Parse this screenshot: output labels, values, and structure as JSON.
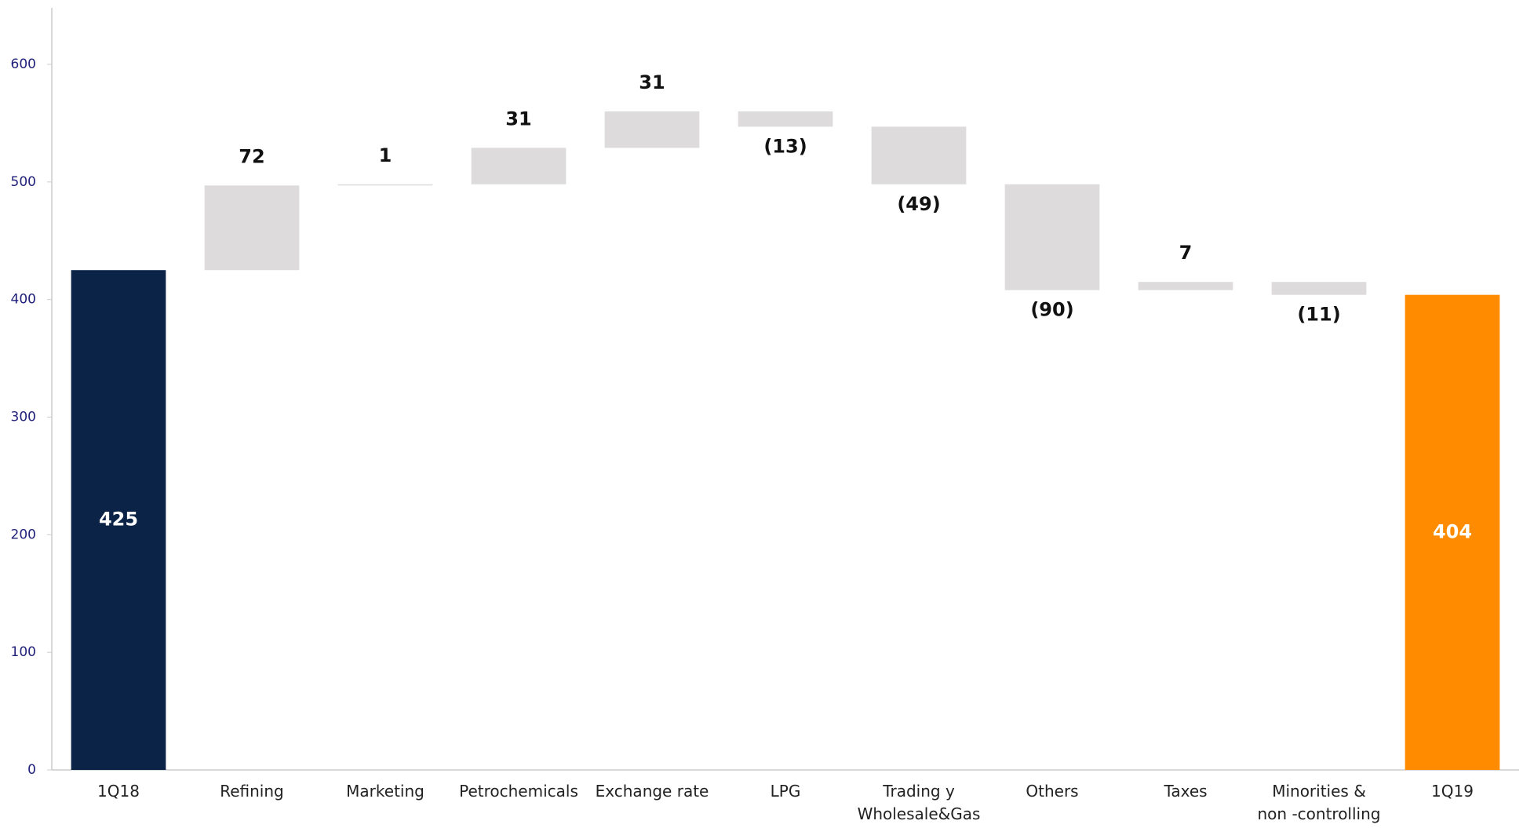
{
  "chart_data": {
    "type": "waterfall",
    "categories": [
      "1Q18",
      "Refining",
      "Marketing",
      "Petrochemicals",
      "Exchange rate",
      "LPG",
      "Trading y Wholesale&Gas",
      "Others",
      "Taxes",
      "Minorities & non -controlling",
      "1Q19"
    ],
    "values": [
      425,
      72,
      1,
      31,
      31,
      -13,
      -49,
      -90,
      7,
      -11,
      404
    ],
    "value_labels": [
      "425",
      "72",
      "1",
      "31",
      "31",
      "(13)",
      "(49)",
      "(90)",
      "7",
      "(11)",
      "404"
    ],
    "measures": [
      "total",
      "relative",
      "relative",
      "relative",
      "relative",
      "relative",
      "relative",
      "relative",
      "relative",
      "relative",
      "total"
    ],
    "colors": [
      "#0a2347",
      "#dddbdb",
      "#dddbdb",
      "#dddbdb",
      "#dddbdb",
      "#dddbdb",
      "#dddbdb",
      "#dddbdb",
      "#dddbdb",
      "#dddbdb",
      "#ff8c00"
    ],
    "ylim": [
      0,
      600
    ],
    "yticks": [
      0,
      100,
      200,
      300,
      400,
      500,
      600
    ],
    "grid": false
  }
}
